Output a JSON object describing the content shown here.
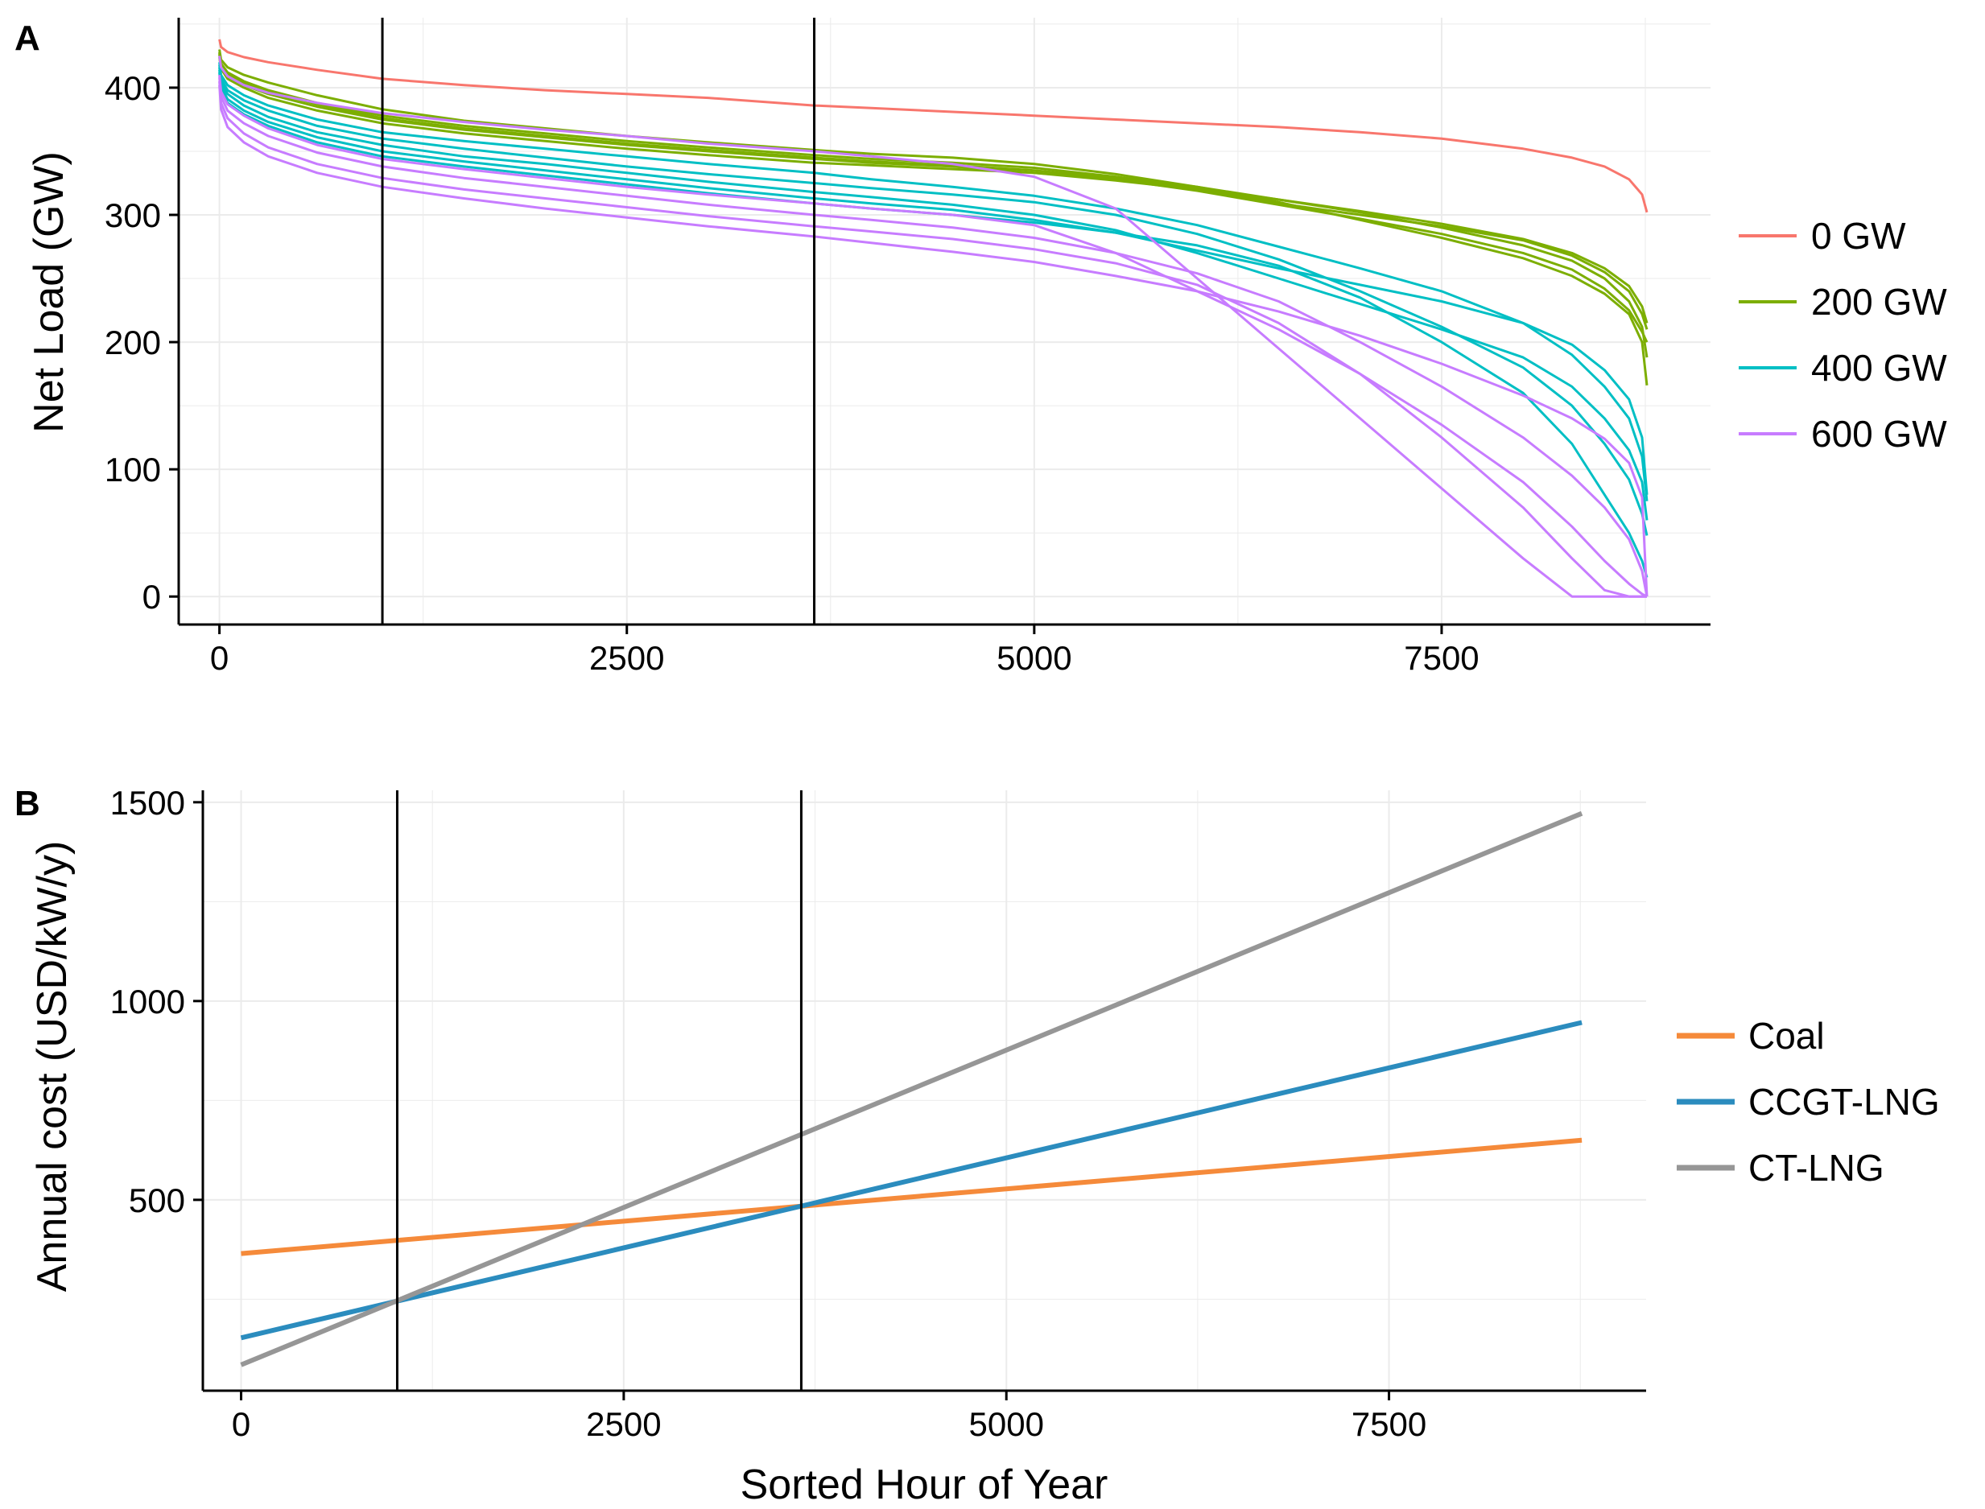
{
  "colors": {
    "0 GW": "#f8766d",
    "200 GW": "#7cae00",
    "400 GW": "#00bfc4",
    "600 GW": "#c77cff",
    "Coal": "#f58a3a",
    "CCGT-LNG": "#2b8cbe",
    "CT-LNG": "#969696",
    "vline": "#000000",
    "grid": "#ebebeb"
  },
  "chart_data": [
    {
      "panel": "A",
      "type": "line",
      "xlabel": "",
      "ylabel": "Net Load (GW)",
      "xlim": [
        -250,
        9150
      ],
      "ylim": [
        -22,
        455
      ],
      "x_ticks": [
        0,
        2500,
        5000,
        7500
      ],
      "x_tick_labels": [
        "0",
        "2500",
        "5000",
        "7500"
      ],
      "y_ticks": [
        0,
        100,
        200,
        300,
        400
      ],
      "y_tick_labels": [
        "0",
        "100",
        "200",
        "300",
        "400"
      ],
      "grid": true,
      "legend_position": "right",
      "legend": [
        "0 GW",
        "200 GW",
        "400 GW",
        "600 GW"
      ],
      "vlines": [
        1000,
        3650
      ],
      "x": [
        0,
        10,
        50,
        150,
        300,
        600,
        1000,
        1500,
        2000,
        2500,
        3000,
        3650,
        4000,
        4500,
        5000,
        5500,
        6000,
        6500,
        7000,
        7500,
        8000,
        8300,
        8500,
        8650,
        8730,
        8760
      ],
      "series": [
        {
          "group": "0 GW",
          "values": [
            438,
            432,
            428,
            424,
            420,
            414,
            407,
            402,
            398,
            395,
            392,
            386,
            384,
            381,
            378,
            375,
            372,
            369,
            365,
            360,
            352,
            345,
            338,
            328,
            316,
            302
          ]
        },
        {
          "group": "200 GW",
          "values": [
            430,
            422,
            416,
            410,
            404,
            394,
            383,
            374,
            368,
            362,
            357,
            351,
            348,
            345,
            340,
            332,
            322,
            312,
            302,
            290,
            276,
            264,
            250,
            232,
            212,
            188
          ]
        },
        {
          "group": "200 GW",
          "values": [
            428,
            419,
            412,
            405,
            398,
            388,
            378,
            370,
            364,
            358,
            353,
            347,
            344,
            341,
            337,
            330,
            322,
            310,
            296,
            282,
            266,
            252,
            238,
            222,
            200,
            166
          ]
        },
        {
          "group": "200 GW",
          "values": [
            426,
            417,
            409,
            402,
            395,
            385,
            375,
            367,
            361,
            355,
            350,
            344,
            341,
            338,
            333,
            328,
            319,
            308,
            297,
            285,
            270,
            257,
            242,
            225,
            208,
            200
          ]
        },
        {
          "group": "200 GW",
          "values": [
            424,
            415,
            407,
            400,
            392,
            382,
            372,
            364,
            358,
            352,
            347,
            341,
            339,
            336,
            333,
            327,
            320,
            309,
            300,
            291,
            280,
            268,
            255,
            240,
            222,
            210
          ]
        },
        {
          "group": "200 GW",
          "values": [
            427,
            418,
            411,
            404,
            397,
            387,
            376,
            368,
            362,
            356,
            351,
            345,
            342,
            339,
            335,
            329,
            321,
            312,
            303,
            293,
            281,
            270,
            258,
            244,
            228,
            215
          ]
        },
        {
          "group": "400 GW",
          "values": [
            420,
            410,
            402,
            394,
            386,
            375,
            365,
            358,
            352,
            346,
            340,
            333,
            328,
            322,
            315,
            305,
            292,
            275,
            258,
            240,
            215,
            190,
            165,
            140,
            110,
            75
          ]
        },
        {
          "group": "400 GW",
          "values": [
            418,
            407,
            398,
            390,
            382,
            370,
            360,
            352,
            345,
            338,
            332,
            325,
            321,
            316,
            310,
            300,
            285,
            265,
            240,
            212,
            180,
            150,
            120,
            92,
            65,
            48
          ]
        },
        {
          "group": "400 GW",
          "values": [
            416,
            404,
            395,
            386,
            377,
            365,
            355,
            346,
            340,
            333,
            326,
            318,
            314,
            308,
            300,
            288,
            270,
            250,
            230,
            210,
            188,
            165,
            140,
            115,
            90,
            60
          ]
        },
        {
          "group": "400 GW",
          "values": [
            414,
            401,
            391,
            382,
            373,
            361,
            350,
            342,
            335,
            328,
            321,
            313,
            309,
            304,
            296,
            286,
            272,
            258,
            245,
            232,
            215,
            198,
            178,
            155,
            125,
            80
          ]
        },
        {
          "group": "400 GW",
          "values": [
            412,
            398,
            388,
            379,
            370,
            357,
            346,
            338,
            331,
            324,
            317,
            309,
            305,
            300,
            294,
            286,
            276,
            260,
            235,
            200,
            160,
            120,
            80,
            50,
            28,
            15
          ]
        },
        {
          "group": "600 GW",
          "values": [
            425,
            416,
            409,
            402,
            396,
            388,
            380,
            373,
            367,
            362,
            356,
            350,
            346,
            340,
            330,
            305,
            250,
            195,
            140,
            85,
            30,
            0,
            0,
            0,
            0,
            0
          ]
        },
        {
          "group": "600 GW",
          "values": [
            410,
            397,
            387,
            378,
            368,
            355,
            344,
            336,
            329,
            322,
            316,
            309,
            305,
            300,
            292,
            270,
            240,
            210,
            175,
            135,
            90,
            55,
            28,
            10,
            2,
            0
          ]
        },
        {
          "group": "600 GW",
          "values": [
            408,
            393,
            382,
            372,
            362,
            349,
            338,
            329,
            322,
            315,
            308,
            300,
            296,
            290,
            282,
            270,
            254,
            232,
            200,
            165,
            125,
            95,
            70,
            45,
            20,
            0
          ]
        },
        {
          "group": "600 GW",
          "values": [
            405,
            388,
            376,
            364,
            353,
            340,
            329,
            320,
            313,
            306,
            299,
            291,
            287,
            281,
            273,
            262,
            245,
            215,
            175,
            125,
            70,
            30,
            5,
            0,
            0,
            0
          ]
        },
        {
          "group": "600 GW",
          "values": [
            402,
            383,
            369,
            357,
            346,
            333,
            322,
            313,
            305,
            298,
            291,
            283,
            278,
            271,
            263,
            252,
            240,
            224,
            205,
            183,
            158,
            140,
            124,
            105,
            78,
            0
          ]
        }
      ]
    },
    {
      "panel": "B",
      "type": "line",
      "xlabel": "Sorted Hour of Year",
      "ylabel": "Annual cost (USD/kW/y)",
      "xlim": [
        -250,
        9180
      ],
      "ylim": [
        20,
        1530
      ],
      "x_ticks": [
        0,
        2500,
        5000,
        7500
      ],
      "x_tick_labels": [
        "0",
        "2500",
        "5000",
        "7500"
      ],
      "y_ticks": [
        500,
        1000,
        1500
      ],
      "y_tick_labels": [
        "500",
        "1000",
        "1500"
      ],
      "grid": true,
      "legend_position": "right",
      "legend": [
        "Coal",
        "CCGT-LNG",
        "CT-LNG"
      ],
      "vlines": [
        1020,
        3660
      ],
      "x": [
        0,
        8760
      ],
      "series": [
        {
          "name": "Coal",
          "values": [
            365,
            650
          ]
        },
        {
          "name": "CCGT-LNG",
          "values": [
            153,
            946
          ]
        },
        {
          "name": "CT-LNG",
          "values": [
            85,
            1472
          ]
        }
      ]
    }
  ],
  "panel_tags": [
    "A",
    "B"
  ],
  "legends": [
    {
      "items": [
        "0 GW",
        "200 GW",
        "400 GW",
        "600 GW"
      ]
    },
    {
      "items": [
        "Coal",
        "CCGT-LNG",
        "CT-LNG"
      ]
    }
  ]
}
